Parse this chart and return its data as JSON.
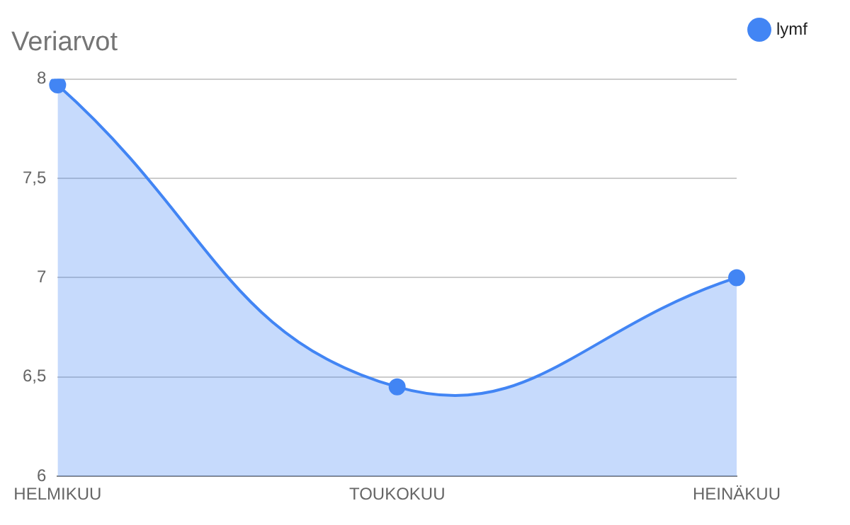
{
  "chart_data": {
    "type": "area",
    "title": "Veriarvot",
    "categories": [
      "HELMIKUU",
      "TOUKOKUU",
      "HEINÄKUU"
    ],
    "series": [
      {
        "name": "lymf",
        "color": "#4285f4",
        "values": [
          7.97,
          6.45,
          7.0
        ]
      }
    ],
    "ylim": [
      6,
      8
    ],
    "yticks": [
      6,
      {
        "value": 6.5,
        "label": "6,5"
      },
      7,
      {
        "value": 7.5,
        "label": "7,5"
      },
      8
    ],
    "grid": "y",
    "legend": "top right",
    "marker": "circle"
  }
}
